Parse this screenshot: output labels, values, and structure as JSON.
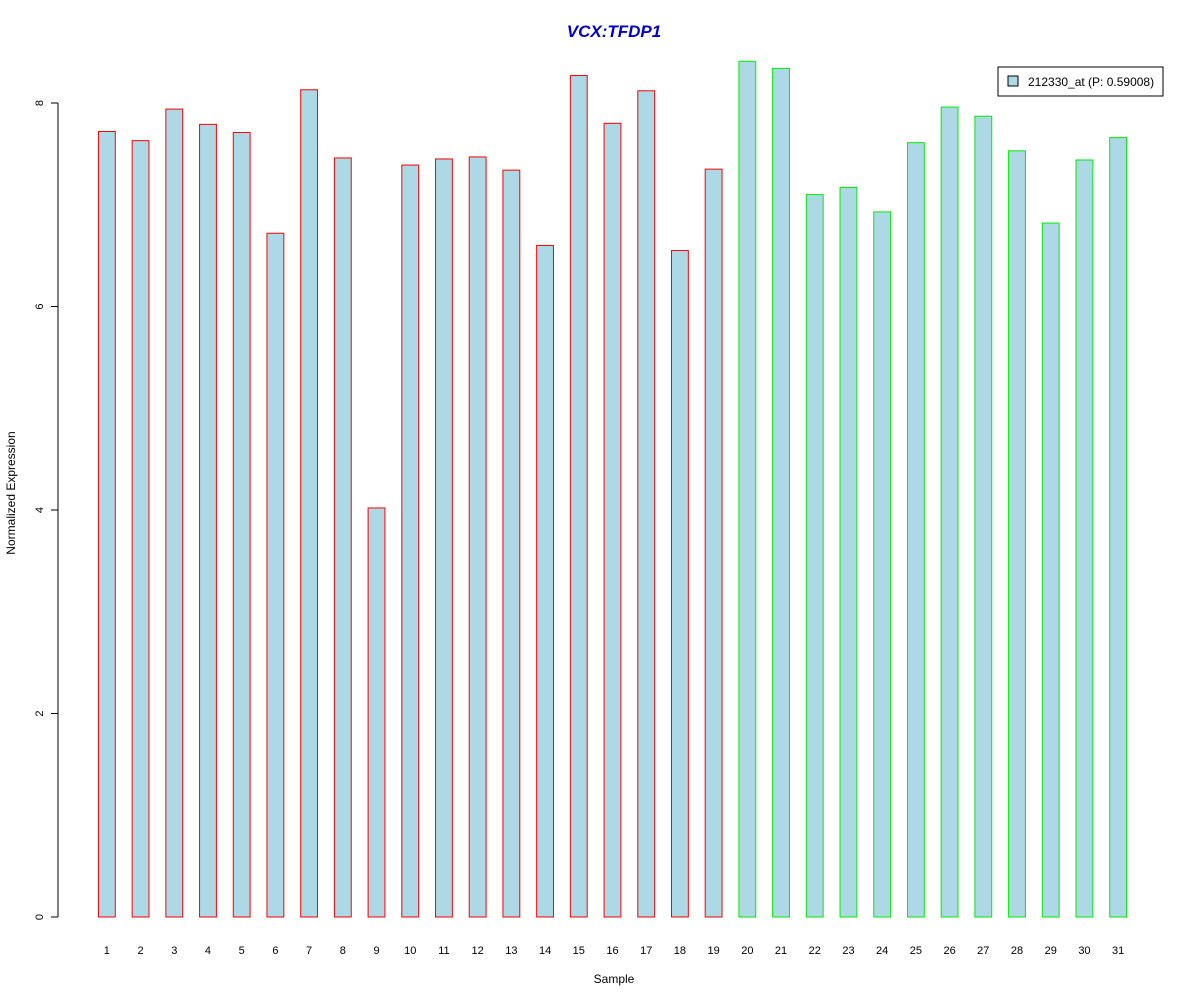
{
  "chart_data": {
    "type": "bar",
    "title": "VCX:TFDP1",
    "xlabel": "Sample",
    "ylabel": "Normalized Expression",
    "categories": [
      "1",
      "2",
      "3",
      "4",
      "5",
      "6",
      "7",
      "8",
      "9",
      "10",
      "11",
      "12",
      "13",
      "14",
      "15",
      "16",
      "17",
      "18",
      "19",
      "20",
      "21",
      "22",
      "23",
      "24",
      "25",
      "26",
      "27",
      "28",
      "29",
      "30",
      "31"
    ],
    "series": [
      {
        "name": "212330_at (P: 0.59008)",
        "values": [
          7.72,
          7.63,
          7.94,
          7.79,
          7.71,
          6.72,
          8.13,
          7.46,
          4.02,
          7.39,
          7.45,
          7.47,
          7.34,
          6.6,
          8.27,
          7.8,
          8.12,
          6.55,
          7.35,
          8.41,
          8.34,
          7.1,
          7.17,
          6.93,
          7.61,
          7.96,
          7.87,
          7.53,
          6.82,
          7.44,
          7.66
        ]
      }
    ],
    "group_colors": [
      "#ff0000",
      "#ff0000",
      "#ff0000",
      "#ff0000",
      "#ff0000",
      "#ff0000",
      "#ff0000",
      "#ff0000",
      "#ff0000",
      "#ff0000",
      "#ff0000",
      "#ff0000",
      "#ff0000",
      "#ff0000",
      "#ff0000",
      "#ff0000",
      "#ff0000",
      "#ff0000",
      "#ff0000",
      "#00ee00",
      "#00ee00",
      "#00ee00",
      "#00ee00",
      "#00ee00",
      "#00ee00",
      "#00ee00",
      "#00ee00",
      "#00ee00",
      "#00ee00",
      "#00ee00",
      "#00ee00"
    ],
    "bar_fill": "#add8e6",
    "title_color": "#0000cd",
    "yticks": [
      0,
      2,
      4,
      6,
      8
    ],
    "ylim": [
      0,
      8.5
    ],
    "grid": false,
    "legend_position": "top-right"
  }
}
